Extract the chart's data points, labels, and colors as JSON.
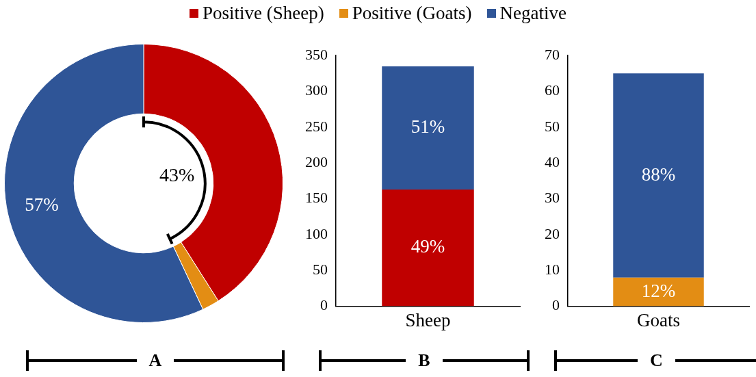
{
  "chart_data": [
    {
      "type": "donut",
      "categories": [
        "Positive (Sheep)",
        "Positive (Goats)",
        "Negative"
      ],
      "values": [
        41,
        2,
        57
      ],
      "colors": [
        "#c00000",
        "#e38d14",
        "#2f5597"
      ],
      "value_labels": [
        null,
        null,
        "57%"
      ],
      "legend": "top",
      "annotations": [
        "43%",
        "A"
      ]
    },
    {
      "type": "bar",
      "stacked": true,
      "categories": [
        "Sheep"
      ],
      "series": [
        {
          "name": "Positive (Sheep)",
          "color": "#c00000",
          "values": [
            163
          ]
        },
        {
          "name": "Negative",
          "color": "#2f5597",
          "values": [
            172
          ]
        }
      ],
      "ylim": [
        0,
        350
      ],
      "yticks": [
        0,
        50,
        100,
        150,
        200,
        250,
        300,
        350
      ],
      "grid": false,
      "annotations": [
        "49%",
        "51%",
        "B"
      ]
    },
    {
      "type": "bar",
      "stacked": true,
      "categories": [
        "Goats"
      ],
      "series": [
        {
          "name": "Positive (Goats)",
          "color": "#e38d14",
          "values": [
            8
          ]
        },
        {
          "name": "Negative",
          "color": "#2f5597",
          "values": [
            57
          ]
        }
      ],
      "ylim": [
        0,
        70
      ],
      "yticks": [
        0,
        10,
        20,
        30,
        40,
        50,
        60,
        70
      ],
      "grid": false,
      "annotations": [
        "12%",
        "88%",
        "C"
      ]
    }
  ]
}
